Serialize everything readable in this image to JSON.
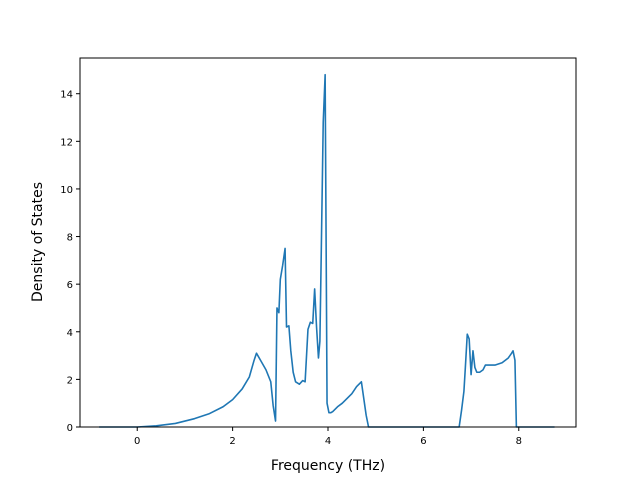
{
  "chart_data": {
    "type": "line",
    "title": "",
    "xlabel": "Frequency (THz)",
    "ylabel": "Density of States",
    "xlim": [
      -1.2,
      9.2
    ],
    "ylim": [
      0,
      15.5
    ],
    "x_ticks": [
      0,
      2,
      4,
      6,
      8
    ],
    "y_ticks": [
      0,
      2,
      4,
      6,
      8,
      10,
      12,
      14
    ],
    "x_tick_labels": [
      "0",
      "2",
      "4",
      "6",
      "8"
    ],
    "y_tick_labels": [
      "0",
      "2",
      "4",
      "6",
      "8",
      "10",
      "12",
      "14"
    ],
    "grid": false,
    "legend": "none",
    "line_color": "#1f77b4",
    "series": [
      {
        "x": [
          -0.8,
          -0.4,
          0.0,
          0.4,
          0.8,
          1.2,
          1.5,
          1.8,
          2.0,
          2.2,
          2.35,
          2.45,
          2.5,
          2.6,
          2.7,
          2.8,
          2.85,
          2.9,
          2.93,
          2.97,
          3.0,
          3.05,
          3.1,
          3.13,
          3.18,
          3.22,
          3.27,
          3.32,
          3.4,
          3.47,
          3.52,
          3.58,
          3.63,
          3.68,
          3.72,
          3.76,
          3.8,
          3.83,
          3.86,
          3.9,
          3.94,
          3.98,
          4.02,
          4.06,
          4.1,
          4.2,
          4.3,
          4.4,
          4.5,
          4.6,
          4.7,
          4.8,
          4.85,
          4.9,
          5.0,
          6.0,
          6.75,
          6.8,
          6.85,
          6.88,
          6.92,
          6.96,
          7.0,
          7.04,
          7.08,
          7.12,
          7.18,
          7.25,
          7.3,
          7.35,
          7.5,
          7.65,
          7.78,
          7.85,
          7.88,
          7.92,
          7.95,
          8.1,
          8.75
        ],
        "y": [
          0.0,
          0.0,
          0.0,
          0.05,
          0.15,
          0.35,
          0.55,
          0.85,
          1.15,
          1.6,
          2.1,
          2.8,
          3.1,
          2.75,
          2.4,
          1.9,
          0.9,
          0.25,
          5.0,
          4.8,
          6.2,
          6.8,
          7.5,
          4.2,
          4.25,
          3.2,
          2.3,
          1.9,
          1.8,
          1.95,
          1.9,
          4.1,
          4.4,
          4.35,
          5.8,
          4.2,
          2.9,
          3.6,
          7.5,
          12.8,
          14.8,
          1.0,
          0.6,
          0.6,
          0.65,
          0.85,
          1.0,
          1.2,
          1.4,
          1.7,
          1.9,
          0.5,
          0.0,
          0.0,
          0.0,
          0.0,
          0.0,
          0.7,
          1.5,
          2.5,
          3.9,
          3.7,
          2.2,
          3.2,
          2.5,
          2.3,
          2.3,
          2.4,
          2.6,
          2.6,
          2.6,
          2.7,
          2.9,
          3.1,
          3.2,
          2.8,
          0.0,
          0.0,
          0.0
        ]
      }
    ]
  }
}
